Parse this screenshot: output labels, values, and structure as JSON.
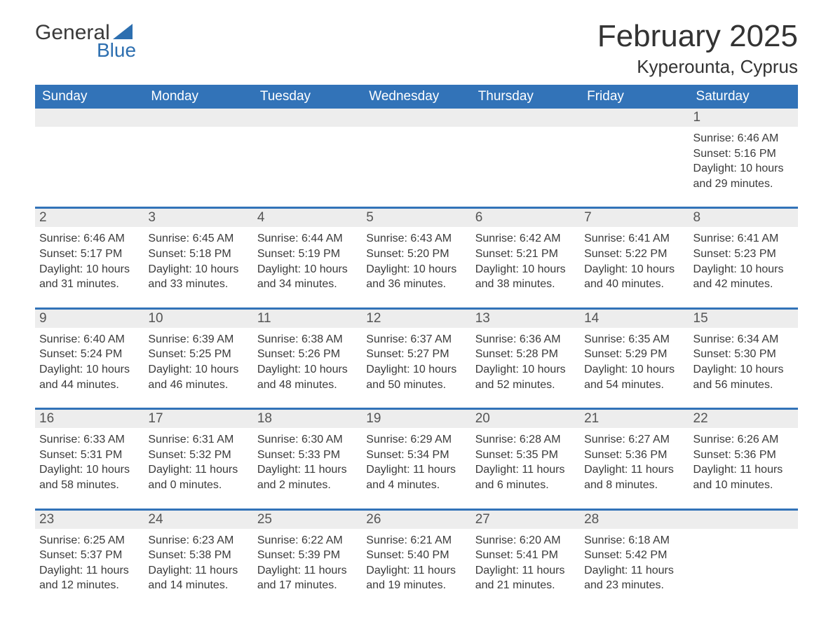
{
  "logo": {
    "top": "General",
    "bottom": "Blue"
  },
  "title": "February 2025",
  "location": "Kyperounta, Cyprus",
  "colors": {
    "header_bg": "#3273b8",
    "header_text": "#ffffff",
    "daynum_bg": "#ededed",
    "week_border": "#3273b8",
    "text": "#333333",
    "logo_blue": "#2d6fb0",
    "page_bg": "#ffffff"
  },
  "days_of_week": [
    "Sunday",
    "Monday",
    "Tuesday",
    "Wednesday",
    "Thursday",
    "Friday",
    "Saturday"
  ],
  "labels": {
    "sunrise_prefix": "Sunrise: ",
    "sunset_prefix": "Sunset: ",
    "daylight_prefix": "Daylight: "
  },
  "weeks": [
    [
      null,
      null,
      null,
      null,
      null,
      null,
      {
        "date": "1",
        "sunrise": "6:46 AM",
        "sunset": "5:16 PM",
        "daylight": "10 hours and 29 minutes."
      }
    ],
    [
      {
        "date": "2",
        "sunrise": "6:46 AM",
        "sunset": "5:17 PM",
        "daylight": "10 hours and 31 minutes."
      },
      {
        "date": "3",
        "sunrise": "6:45 AM",
        "sunset": "5:18 PM",
        "daylight": "10 hours and 33 minutes."
      },
      {
        "date": "4",
        "sunrise": "6:44 AM",
        "sunset": "5:19 PM",
        "daylight": "10 hours and 34 minutes."
      },
      {
        "date": "5",
        "sunrise": "6:43 AM",
        "sunset": "5:20 PM",
        "daylight": "10 hours and 36 minutes."
      },
      {
        "date": "6",
        "sunrise": "6:42 AM",
        "sunset": "5:21 PM",
        "daylight": "10 hours and 38 minutes."
      },
      {
        "date": "7",
        "sunrise": "6:41 AM",
        "sunset": "5:22 PM",
        "daylight": "10 hours and 40 minutes."
      },
      {
        "date": "8",
        "sunrise": "6:41 AM",
        "sunset": "5:23 PM",
        "daylight": "10 hours and 42 minutes."
      }
    ],
    [
      {
        "date": "9",
        "sunrise": "6:40 AM",
        "sunset": "5:24 PM",
        "daylight": "10 hours and 44 minutes."
      },
      {
        "date": "10",
        "sunrise": "6:39 AM",
        "sunset": "5:25 PM",
        "daylight": "10 hours and 46 minutes."
      },
      {
        "date": "11",
        "sunrise": "6:38 AM",
        "sunset": "5:26 PM",
        "daylight": "10 hours and 48 minutes."
      },
      {
        "date": "12",
        "sunrise": "6:37 AM",
        "sunset": "5:27 PM",
        "daylight": "10 hours and 50 minutes."
      },
      {
        "date": "13",
        "sunrise": "6:36 AM",
        "sunset": "5:28 PM",
        "daylight": "10 hours and 52 minutes."
      },
      {
        "date": "14",
        "sunrise": "6:35 AM",
        "sunset": "5:29 PM",
        "daylight": "10 hours and 54 minutes."
      },
      {
        "date": "15",
        "sunrise": "6:34 AM",
        "sunset": "5:30 PM",
        "daylight": "10 hours and 56 minutes."
      }
    ],
    [
      {
        "date": "16",
        "sunrise": "6:33 AM",
        "sunset": "5:31 PM",
        "daylight": "10 hours and 58 minutes."
      },
      {
        "date": "17",
        "sunrise": "6:31 AM",
        "sunset": "5:32 PM",
        "daylight": "11 hours and 0 minutes."
      },
      {
        "date": "18",
        "sunrise": "6:30 AM",
        "sunset": "5:33 PM",
        "daylight": "11 hours and 2 minutes."
      },
      {
        "date": "19",
        "sunrise": "6:29 AM",
        "sunset": "5:34 PM",
        "daylight": "11 hours and 4 minutes."
      },
      {
        "date": "20",
        "sunrise": "6:28 AM",
        "sunset": "5:35 PM",
        "daylight": "11 hours and 6 minutes."
      },
      {
        "date": "21",
        "sunrise": "6:27 AM",
        "sunset": "5:36 PM",
        "daylight": "11 hours and 8 minutes."
      },
      {
        "date": "22",
        "sunrise": "6:26 AM",
        "sunset": "5:36 PM",
        "daylight": "11 hours and 10 minutes."
      }
    ],
    [
      {
        "date": "23",
        "sunrise": "6:25 AM",
        "sunset": "5:37 PM",
        "daylight": "11 hours and 12 minutes."
      },
      {
        "date": "24",
        "sunrise": "6:23 AM",
        "sunset": "5:38 PM",
        "daylight": "11 hours and 14 minutes."
      },
      {
        "date": "25",
        "sunrise": "6:22 AM",
        "sunset": "5:39 PM",
        "daylight": "11 hours and 17 minutes."
      },
      {
        "date": "26",
        "sunrise": "6:21 AM",
        "sunset": "5:40 PM",
        "daylight": "11 hours and 19 minutes."
      },
      {
        "date": "27",
        "sunrise": "6:20 AM",
        "sunset": "5:41 PM",
        "daylight": "11 hours and 21 minutes."
      },
      {
        "date": "28",
        "sunrise": "6:18 AM",
        "sunset": "5:42 PM",
        "daylight": "11 hours and 23 minutes."
      },
      null
    ]
  ]
}
